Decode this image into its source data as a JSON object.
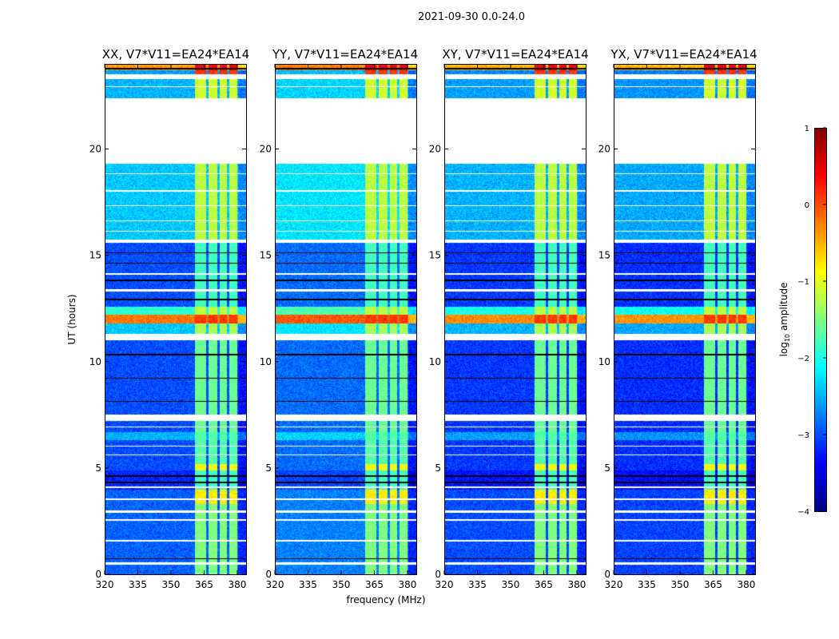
{
  "chart_data": {
    "type": "heatmap",
    "title": "2021-09-30 0.0-24.0",
    "xlabel": "frequency (MHz)",
    "ylabel": "UT (hours)",
    "xlim": [
      320,
      384
    ],
    "ylim": [
      0,
      24
    ],
    "xticks": [
      "320",
      "335",
      "350",
      "365",
      "380"
    ],
    "xtick_values": [
      320,
      335,
      350,
      365,
      380
    ],
    "yticks": [
      "0",
      "5",
      "10",
      "15",
      "20"
    ],
    "ytick_values": [
      0,
      5,
      10,
      15,
      20
    ],
    "colorbar": {
      "label_prefix": "log",
      "label_sub": "10",
      "label_suffix": " amplitude",
      "range": [
        -4,
        1
      ],
      "ticks": [
        "1",
        "0",
        "−1",
        "−2",
        "−3",
        "−4"
      ],
      "tick_values": [
        1,
        0,
        -1,
        -2,
        -3,
        -4
      ],
      "colormap": "jet"
    },
    "panels": [
      {
        "title": "XX, V7*V11=EA24*EA14",
        "offset": 0.0
      },
      {
        "title": "YY, V7*V11=EA24*EA14",
        "offset": 0.15
      },
      {
        "title": "XY, V7*V11=EA24*EA14",
        "offset": -0.1
      },
      {
        "title": "YX, V7*V11=EA24*EA14",
        "offset": -0.15
      }
    ],
    "rfi_channels_mhz": [
      [
        361,
        366
      ],
      [
        367,
        371
      ],
      [
        372,
        375.5
      ],
      [
        376.5,
        380
      ]
    ],
    "time_bands": [
      {
        "from": 0,
        "to": 3.3,
        "level": -2.9,
        "rfi": -1.5
      },
      {
        "from": 3.3,
        "to": 4.0,
        "level": -2.9,
        "rfi": -0.8
      },
      {
        "from": 4.0,
        "to": 4.9,
        "level": -3.2,
        "rfi": -1.8
      },
      {
        "from": 4.9,
        "to": 5.2,
        "level": -3.0,
        "rfi": -0.9
      },
      {
        "from": 5.2,
        "to": 6.3,
        "level": -3.0,
        "rfi": -1.7
      },
      {
        "from": 6.3,
        "to": 6.7,
        "level": -2.5,
        "rfi": -1.7
      },
      {
        "from": 6.7,
        "to": 11.0,
        "level": -3.0,
        "rfi": -1.6
      },
      {
        "from": 11.3,
        "to": 11.8,
        "level": -2.4,
        "rfi": -1.3
      },
      {
        "from": 11.8,
        "to": 12.2,
        "level": -0.2,
        "rfi": 0.1
      },
      {
        "from": 12.2,
        "to": 12.6,
        "level": -1.9,
        "rfi": -1.2
      },
      {
        "from": 12.6,
        "to": 15.7,
        "level": -3.0,
        "rfi": -1.8
      },
      {
        "from": 15.7,
        "to": 19.3,
        "level": -2.4,
        "rfi": -1.2
      },
      {
        "from": 22.4,
        "to": 23.3,
        "level": -2.5,
        "rfi": -1.1
      },
      {
        "from": 23.5,
        "to": 23.7,
        "level": -2.6,
        "rfi": 0.1
      },
      {
        "from": 23.7,
        "to": 24,
        "level": -0.4,
        "rfi": 0.4
      }
    ],
    "flagged_hours": [
      [
        0.45,
        0.55
      ],
      [
        1.55,
        1.6
      ],
      [
        2.5,
        2.6
      ],
      [
        2.9,
        3.0
      ],
      [
        3.5,
        3.55
      ],
      [
        4.05,
        4.15
      ],
      [
        5.6,
        5.65
      ],
      [
        6.0,
        6.05
      ],
      [
        6.9,
        6.95
      ],
      [
        7.2,
        7.5
      ],
      [
        11.0,
        11.3
      ],
      [
        13.3,
        13.4
      ],
      [
        14.1,
        14.15
      ],
      [
        15.6,
        15.75
      ],
      [
        16.1,
        16.15
      ],
      [
        16.6,
        16.65
      ],
      [
        17.3,
        17.35
      ],
      [
        18.0,
        18.05
      ],
      [
        18.8,
        18.85
      ],
      [
        19.3,
        22.4
      ],
      [
        22.9,
        22.95
      ],
      [
        23.3,
        23.5
      ]
    ],
    "dark_lines_hours": [
      [
        0.7,
        0.75
      ],
      [
        4.3,
        4.35
      ],
      [
        4.6,
        4.65
      ],
      [
        8.1,
        8.15
      ],
      [
        9.2,
        9.25
      ],
      [
        10.3,
        10.35
      ],
      [
        12.9,
        12.95
      ],
      [
        13.8,
        13.85
      ],
      [
        14.6,
        14.65
      ],
      [
        15.1,
        15.15
      ],
      [
        23.75,
        23.8
      ]
    ]
  }
}
